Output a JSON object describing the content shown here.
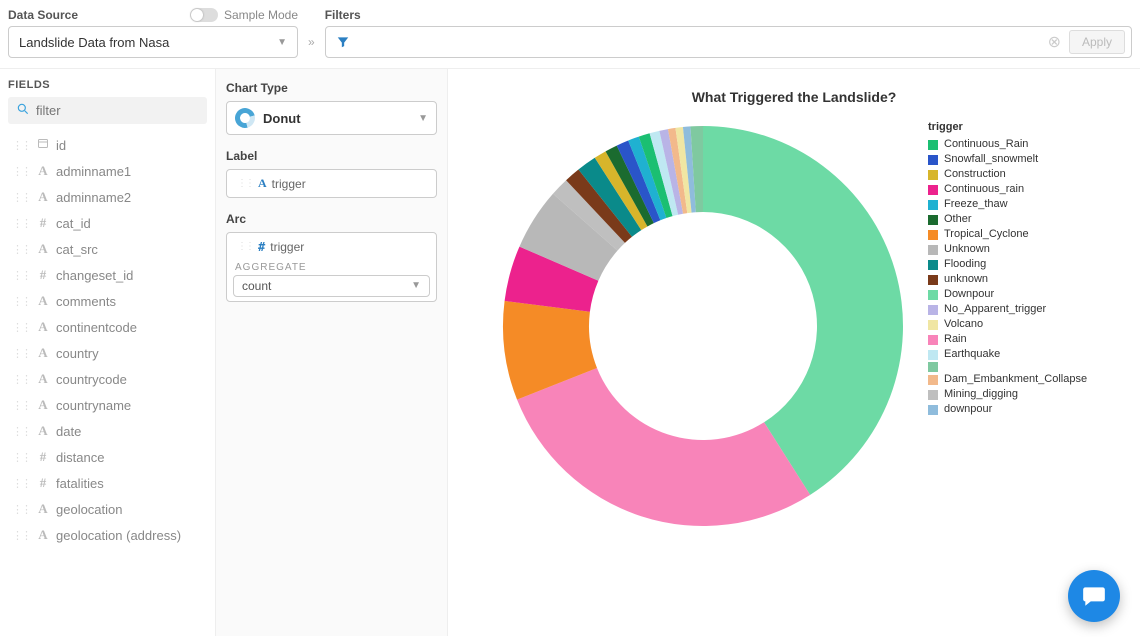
{
  "topbar": {
    "data_source_label": "Data Source",
    "sample_mode_label": "Sample Mode",
    "data_source_value": "Landslide Data from Nasa",
    "filters_label": "Filters",
    "apply_label": "Apply"
  },
  "fields_panel": {
    "title": "FIELDS",
    "filter_placeholder": "filter",
    "fields": [
      {
        "type": "cal",
        "name": "id"
      },
      {
        "type": "A",
        "name": "adminname1"
      },
      {
        "type": "A",
        "name": "adminname2"
      },
      {
        "type": "hash",
        "name": "cat_id"
      },
      {
        "type": "A",
        "name": "cat_src"
      },
      {
        "type": "hash",
        "name": "changeset_id"
      },
      {
        "type": "A",
        "name": "comments"
      },
      {
        "type": "A",
        "name": "continentcode"
      },
      {
        "type": "A",
        "name": "country"
      },
      {
        "type": "A",
        "name": "countrycode"
      },
      {
        "type": "A",
        "name": "countryname"
      },
      {
        "type": "A",
        "name": "date"
      },
      {
        "type": "hash",
        "name": "distance"
      },
      {
        "type": "hash",
        "name": "fatalities"
      },
      {
        "type": "A",
        "name": "geolocation"
      },
      {
        "type": "A",
        "name": "geolocation (address)"
      }
    ]
  },
  "config": {
    "chart_type_label": "Chart Type",
    "chart_type_value": "Donut",
    "label_label": "Label",
    "label_chip": "trigger",
    "arc_label": "Arc",
    "arc_chip": "trigger",
    "aggregate_label": "AGGREGATE",
    "aggregate_value": "count"
  },
  "chart": {
    "title": "What Triggered the Landslide?",
    "type": "donut",
    "outer_radius": 200,
    "inner_radius": 114,
    "background": "#ffffff",
    "legend_title": "trigger",
    "start_angle_deg": 0,
    "slices": [
      {
        "label": "Downpour",
        "value": 41.0,
        "color": "#6ddaa5"
      },
      {
        "label": "Rain",
        "value": 28.0,
        "color": "#f884b9"
      },
      {
        "label": "Tropical_Cyclone",
        "value": 8.0,
        "color": "#f58b26"
      },
      {
        "label": "Continuous_rain",
        "value": 4.5,
        "color": "#ec228d"
      },
      {
        "label": "Unknown",
        "value": 5.0,
        "color": "#b8b8b8"
      },
      {
        "label": "Mining_digging",
        "value": 1.5,
        "color": "#bfbfbf"
      },
      {
        "label": "unknown",
        "value": 1.3,
        "color": "#7a3a1a"
      },
      {
        "label": "Flooding",
        "value": 1.6,
        "color": "#0a8a8a"
      },
      {
        "label": "Construction",
        "value": 1.0,
        "color": "#d7b52b"
      },
      {
        "label": "Other",
        "value": 1.0,
        "color": "#1b6b2f"
      },
      {
        "label": "Snowfall_snowmelt",
        "value": 1.0,
        "color": "#2a55c9"
      },
      {
        "label": "Freeze_thaw",
        "value": 0.9,
        "color": "#1fb1d1"
      },
      {
        "label": "Continuous_Rain",
        "value": 0.9,
        "color": "#1bbf72"
      },
      {
        "label": "Earthquake",
        "value": 0.8,
        "color": "#bfe8f2"
      },
      {
        "label": "No_Apparent_trigger",
        "value": 0.7,
        "color": "#b9b4e6"
      },
      {
        "label": "Dam_Embankment_Collapse",
        "value": 0.6,
        "color": "#f2b98b"
      },
      {
        "label": "Volcano",
        "value": 0.6,
        "color": "#f0e6a3"
      },
      {
        "label": "downpour",
        "value": 0.6,
        "color": "#8fbcdc"
      },
      {
        "label": "",
        "value": 1.0,
        "color": "#7fc9a0"
      }
    ],
    "legend_order": [
      "Continuous_Rain",
      "Snowfall_snowmelt",
      "Construction",
      "Continuous_rain",
      "Freeze_thaw",
      "Other",
      "Tropical_Cyclone",
      "Unknown",
      "Flooding",
      "unknown",
      "Downpour",
      "No_Apparent_trigger",
      "Volcano",
      "Rain",
      "Earthquake",
      "",
      "Dam_Embankment_Collapse",
      "Mining_digging",
      "downpour"
    ]
  }
}
